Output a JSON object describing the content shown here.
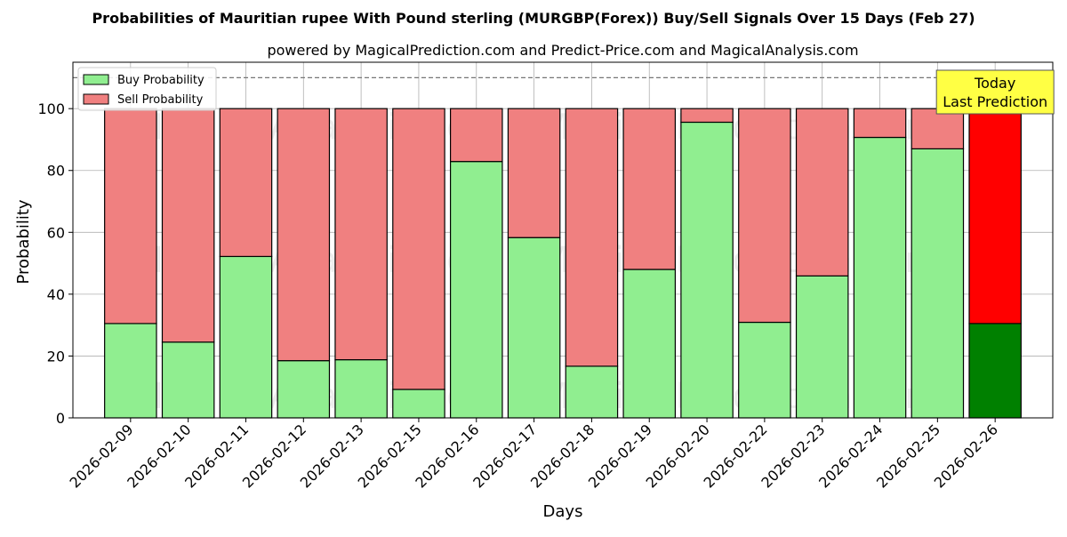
{
  "chart_data": {
    "type": "bar",
    "stacked": true,
    "title": "Probabilities of Mauritian rupee With Pound sterling (MURGBP(Forex)) Buy/Sell Signals Over 15 Days (Feb 27)",
    "subtitle": "powered by MagicalPrediction.com and Predict-Price.com and MagicalAnalysis.com",
    "xlabel": "Days",
    "ylabel": "Probability",
    "ylim": [
      0,
      115
    ],
    "yticks": [
      0,
      20,
      40,
      60,
      80,
      100
    ],
    "grid": true,
    "legend_position": "top-left",
    "reference_line": 110,
    "categories": [
      "2026-02-09",
      "2026-02-10",
      "2026-02-11",
      "2026-02-12",
      "2026-02-13",
      "2026-02-15",
      "2026-02-16",
      "2026-02-17",
      "2026-02-18",
      "2026-02-19",
      "2026-02-20",
      "2026-02-22",
      "2026-02-23",
      "2026-02-24",
      "2026-02-25",
      "2026-02-26"
    ],
    "series": [
      {
        "name": "Buy Probability",
        "color": "#90ee90",
        "highlight_color": "#008000",
        "values": [
          30.5,
          24.5,
          52.2,
          18.5,
          18.8,
          9.2,
          82.9,
          58.3,
          16.7,
          48.0,
          95.6,
          30.9,
          45.9,
          90.7,
          87.0,
          30.5
        ]
      },
      {
        "name": "Sell Probability",
        "color": "#f08080",
        "highlight_color": "#ff0000",
        "values": [
          69.5,
          75.5,
          47.8,
          81.5,
          81.2,
          90.8,
          17.1,
          41.7,
          83.3,
          52.0,
          4.4,
          69.1,
          54.1,
          9.3,
          13.0,
          69.5
        ]
      }
    ],
    "highlight_index": 15,
    "annotation": {
      "line1": "Today",
      "line2": "Last Prediction",
      "background": "#ffff44"
    },
    "watermarks": [
      "MagicalAnalysis.com",
      "MagicalPrediction.com"
    ]
  }
}
